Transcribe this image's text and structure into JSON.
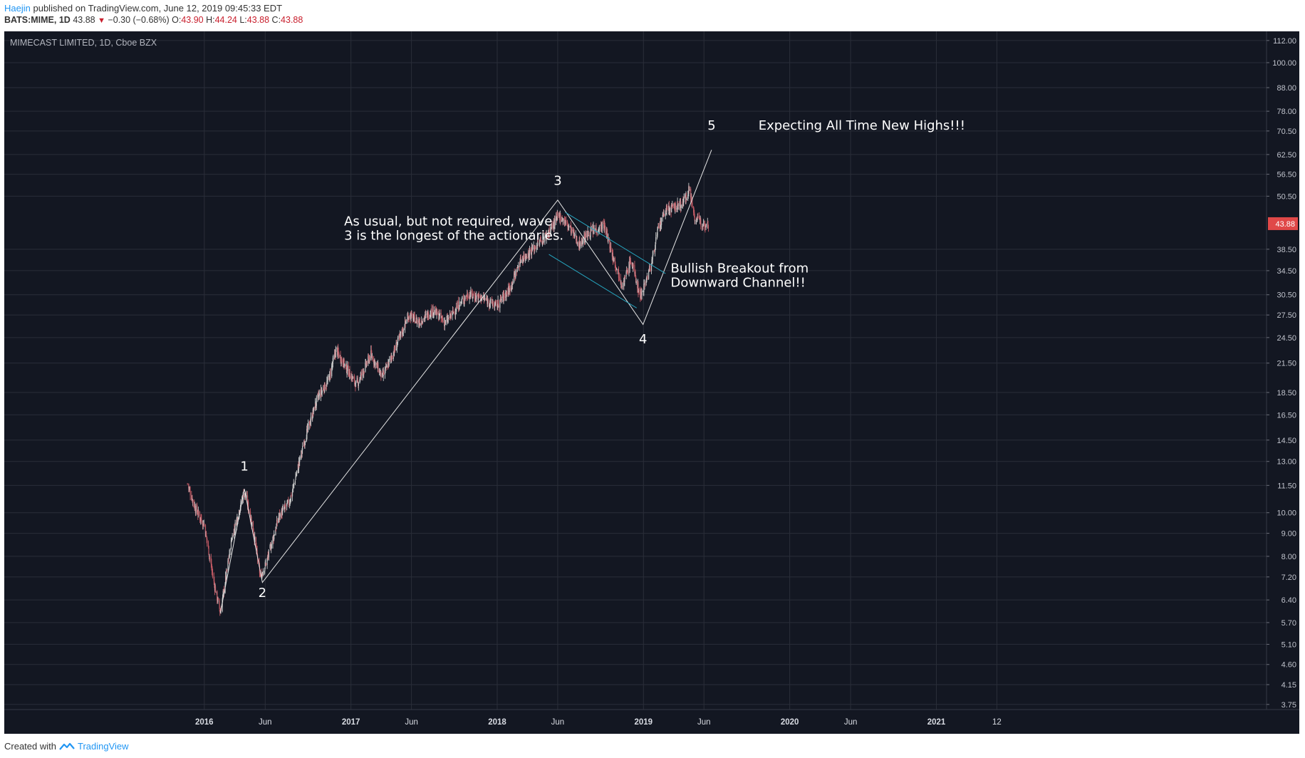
{
  "header": {
    "user": "Haejin",
    "published": "published on TradingView.com, June 12, 2019 09:45:33 EDT",
    "symbol": "BATS:MIME, 1D",
    "last": "43.88",
    "change": "−0.30 (−0.68%)",
    "open_label": "O:",
    "open": "43.90",
    "high_label": "H:",
    "high": "44.24",
    "low_label": "L:",
    "low": "43.88",
    "close_label": "C:",
    "close": "43.88"
  },
  "footer": {
    "created": "Created with",
    "brand": "TradingView"
  },
  "colors": {
    "background": "#131722",
    "up": "#c9c9c9",
    "down": "#c25a64",
    "grid": "#2a2e39",
    "channel": "#26a6c0",
    "price_tag": "#e04848"
  },
  "chart_data": {
    "type": "candlestick",
    "title": "MIMECAST LIMITED, 1D, Cboe BZX",
    "price_tag": "43.88",
    "y_scale": "log",
    "ylim": [
      3.6,
      114
    ],
    "y_ticks": [
      "112.00",
      "100.00",
      "88.00",
      "78.00",
      "70.50",
      "62.50",
      "56.50",
      "50.50",
      "43.88",
      "38.50",
      "34.50",
      "30.50",
      "27.50",
      "24.50",
      "21.50",
      "18.50",
      "16.50",
      "14.50",
      "13.00",
      "11.50",
      "10.00",
      "9.00",
      "8.00",
      "7.20",
      "6.40",
      "5.70",
      "5.10",
      "4.60",
      "4.15",
      "3.75"
    ],
    "x_ticks": [
      {
        "label": "2016",
        "date": "2016-01-01"
      },
      {
        "label": "Jun",
        "date": "2016-06-01"
      },
      {
        "label": "2017",
        "date": "2017-01-01"
      },
      {
        "label": "Jun",
        "date": "2017-06-01"
      },
      {
        "label": "2018",
        "date": "2018-01-01"
      },
      {
        "label": "Jun",
        "date": "2018-06-01"
      },
      {
        "label": "2019",
        "date": "2019-01-01"
      },
      {
        "label": "Jun",
        "date": "2019-06-01"
      },
      {
        "label": "2020",
        "date": "2020-01-01"
      },
      {
        "label": "Jun",
        "date": "2020-06-01"
      },
      {
        "label": "2021",
        "date": "2021-01-01"
      },
      {
        "label": "12",
        "date": "2021-06-01"
      }
    ],
    "price_path": [
      [
        "2015-11-20",
        11.6
      ],
      [
        "2015-12-10",
        10.2
      ],
      [
        "2016-01-01",
        9.4
      ],
      [
        "2016-01-25",
        7.0
      ],
      [
        "2016-02-10",
        6.0
      ],
      [
        "2016-03-10",
        8.8
      ],
      [
        "2016-04-10",
        11.2
      ],
      [
        "2016-05-01",
        9.3
      ],
      [
        "2016-05-20",
        7.2
      ],
      [
        "2016-06-05",
        7.8
      ],
      [
        "2016-07-05",
        9.8
      ],
      [
        "2016-08-01",
        10.6
      ],
      [
        "2016-09-10",
        14.8
      ],
      [
        "2016-10-10",
        18.0
      ],
      [
        "2016-11-05",
        19.6
      ],
      [
        "2016-11-25",
        23.0
      ],
      [
        "2016-12-20",
        21.0
      ],
      [
        "2017-01-15",
        19.2
      ],
      [
        "2017-02-20",
        22.5
      ],
      [
        "2017-03-20",
        20.0
      ],
      [
        "2017-04-20",
        23.0
      ],
      [
        "2017-05-25",
        27.5
      ],
      [
        "2017-06-20",
        26.5
      ],
      [
        "2017-07-25",
        28.2
      ],
      [
        "2017-08-25",
        26.4
      ],
      [
        "2017-09-25",
        28.8
      ],
      [
        "2017-10-20",
        30.6
      ],
      [
        "2017-11-25",
        30.0
      ],
      [
        "2017-12-30",
        28.8
      ],
      [
        "2018-02-01",
        31.5
      ],
      [
        "2018-03-01",
        36.5
      ],
      [
        "2018-04-01",
        38.6
      ],
      [
        "2018-05-05",
        41.5
      ],
      [
        "2018-06-05",
        45.8
      ],
      [
        "2018-07-01",
        43.0
      ],
      [
        "2018-07-25",
        39.5
      ],
      [
        "2018-08-20",
        42.0
      ],
      [
        "2018-09-25",
        43.5
      ],
      [
        "2018-10-15",
        37.5
      ],
      [
        "2018-11-10",
        32.0
      ],
      [
        "2018-12-01",
        36.5
      ],
      [
        "2018-12-24",
        30.2
      ],
      [
        "2019-01-20",
        35.5
      ],
      [
        "2019-02-05",
        42.0
      ],
      [
        "2019-02-25",
        47.0
      ],
      [
        "2019-03-15",
        47.5
      ],
      [
        "2019-04-10",
        48.8
      ],
      [
        "2019-04-25",
        52.5
      ],
      [
        "2019-05-10",
        45.0
      ],
      [
        "2019-06-01",
        44.0
      ],
      [
        "2019-06-12",
        43.88
      ]
    ],
    "wave_lines": [
      [
        [
          "2016-02-10",
          6.0
        ],
        [
          "2016-04-10",
          11.3
        ],
        [
          "2016-05-25",
          7.0
        ],
        [
          "2018-06-01",
          49.5
        ],
        [
          "2018-12-31",
          26.2
        ],
        [
          "2019-06-20",
          64.0
        ]
      ]
    ],
    "channel_lines": [
      [
        [
          "2018-06-20",
          46.5
        ],
        [
          "2019-02-25",
          34.0
        ]
      ],
      [
        [
          "2018-05-10",
          37.5
        ],
        [
          "2018-12-15",
          28.5
        ]
      ]
    ],
    "wave_labels": [
      {
        "text": "1",
        "date": "2016-04-10",
        "price": 12.4
      },
      {
        "text": "2",
        "date": "2016-05-25",
        "price": 6.5
      },
      {
        "text": "3",
        "date": "2018-06-01",
        "price": 53.5
      },
      {
        "text": "4",
        "date": "2018-12-31",
        "price": 23.8
      },
      {
        "text": "5",
        "date": "2019-06-20",
        "price": 71.0
      }
    ],
    "annotations": [
      {
        "lines": [
          "As usual, but not required, wave",
          "3 is the longest of the actionaries."
        ],
        "date": "2016-12-15",
        "price": 43.5
      },
      {
        "lines": [
          "Bullish Breakout from",
          "Downward Channel!!"
        ],
        "date": "2019-03-10",
        "price": 34.2
      },
      {
        "lines": [
          "Expecting All Time New Highs!!!"
        ],
        "date": "2019-10-15",
        "price": 71.0
      }
    ]
  }
}
